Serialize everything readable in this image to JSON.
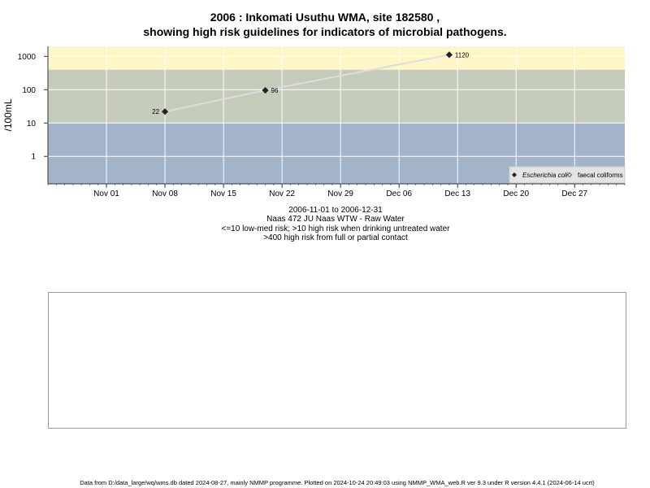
{
  "page": {
    "title_line1": "2006 : Inkomati Usuthu WMA, site 182580 ,",
    "title_line2": "showing high risk guidelines for indicators of microbial pathogens.",
    "caption_range": "2006-11-01 to 2006-12-31",
    "caption_site": "Naas 472 JU Naas WTW - Raw Water",
    "caption_guideline1": "<=10 low-med risk; >10 high risk when drinking untreated water",
    "caption_guideline2": ">400 high risk from full or partial contact",
    "footer": "Data from D:/data_large/wq/wms.db dated 2024-08-27, mainly NMMP programme. Plotted on 2024-10-24 20:49:03 using NMMP_WMA_web.R ver 9.3 under R version 4.4.1 (2024-06-14 ucrt)"
  },
  "chart_data": {
    "type": "line",
    "scale": "log",
    "ylabel": "/100mL",
    "xlabel": "",
    "xlim": [
      "2006-10-25",
      "2007-01-02"
    ],
    "ylim": [
      0.15,
      2000
    ],
    "x_ticks": [
      {
        "date": "2006-11-01",
        "label": "Nov 01"
      },
      {
        "date": "2006-11-08",
        "label": "Nov 08"
      },
      {
        "date": "2006-11-15",
        "label": "Nov 15"
      },
      {
        "date": "2006-11-22",
        "label": "Nov 22"
      },
      {
        "date": "2006-11-29",
        "label": "Nov 29"
      },
      {
        "date": "2006-12-06",
        "label": "Dec 06"
      },
      {
        "date": "2006-12-13",
        "label": "Dec 13"
      },
      {
        "date": "2006-12-20",
        "label": "Dec 20"
      },
      {
        "date": "2006-12-27",
        "label": "Dec 27"
      }
    ],
    "y_ticks": [
      {
        "value": 1,
        "label": "1"
      },
      {
        "value": 10,
        "label": "10"
      },
      {
        "value": 100,
        "label": "100"
      },
      {
        "value": 1000,
        "label": "1000"
      }
    ],
    "bands": [
      {
        "from": 0.15,
        "to": 10,
        "color": "#a2b3ca",
        "meaning": "low-med risk"
      },
      {
        "from": 10,
        "to": 400,
        "color": "#c5ccbc",
        "meaning": "high risk when drinking untreated water"
      },
      {
        "from": 400,
        "to": 2000,
        "color": "#fef6c8",
        "meaning": "high risk from full or partial contact"
      }
    ],
    "grid": true,
    "legend_position": "bottom-right",
    "series": [
      {
        "name": "Escherichia coli",
        "marker": "filled-diamond",
        "color": "#222222",
        "line_color": "#dddddd",
        "points": [
          {
            "x": "2006-11-08",
            "y": 22,
            "label": "22"
          },
          {
            "x": "2006-11-20",
            "y": 96,
            "label": "96"
          },
          {
            "x": "2006-12-12",
            "y": 1120,
            "label": "1120"
          }
        ]
      },
      {
        "name": "faecal coliforms",
        "marker": "open-diamond",
        "color": "#222222",
        "points": []
      }
    ]
  }
}
